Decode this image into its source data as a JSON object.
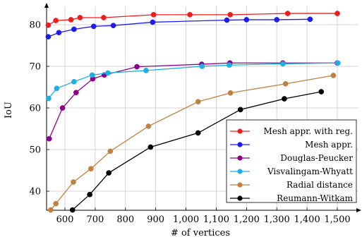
{
  "chart_data": {
    "type": "line",
    "title": "",
    "xlabel": "# of vertices",
    "ylabel": "IoU",
    "xlim": [
      540,
      1520
    ],
    "ylim": [
      35,
      85
    ],
    "x_ticks": [
      600,
      700,
      800,
      900,
      1000,
      1100,
      1200,
      1300,
      1400,
      1500
    ],
    "x_tick_labels": [
      "600",
      "700",
      "800",
      "900",
      "1,000",
      "1,100",
      "1,200",
      "1,300",
      "1,400",
      "1,500"
    ],
    "y_ticks": [
      40,
      50,
      60,
      70,
      80
    ],
    "y_tick_labels": [
      "40",
      "50",
      "60",
      "70",
      "80"
    ],
    "grid": true,
    "legend_position": "bottom-right",
    "series": [
      {
        "name": "Mesh appr. with reg.",
        "color": "#ee1c1c",
        "x": [
          545,
          570,
          620,
          650,
          728,
          893,
          1013,
          1146,
          1336,
          1500
        ],
        "y": [
          79.9,
          81.0,
          81.2,
          81.7,
          81.7,
          82.4,
          82.4,
          82.4,
          82.7,
          82.7
        ]
      },
      {
        "name": "Mesh appr.",
        "color": "#1c1cee",
        "x": [
          545,
          580,
          630,
          695,
          760,
          890,
          1135,
          1200,
          1300,
          1410
        ],
        "y": [
          77.1,
          78.1,
          78.9,
          79.6,
          79.8,
          80.6,
          81.1,
          81.2,
          81.2,
          81.3
        ]
      },
      {
        "name": "Douglas-Peucker",
        "color": "#8b008b",
        "x": [
          548,
          592,
          637,
          692,
          730,
          838,
          1052,
          1145,
          1320,
          1500
        ],
        "y": [
          52.6,
          60.0,
          63.7,
          67.0,
          67.9,
          69.9,
          70.5,
          70.8,
          70.8,
          70.8
        ]
      },
      {
        "name": "Visvalingam-Whyatt",
        "color": "#1ab0e6",
        "x": [
          546,
          573,
          630,
          690,
          742,
          868,
          1053,
          1143,
          1320,
          1502
        ],
        "y": [
          62.3,
          64.7,
          66.3,
          67.9,
          68.4,
          69.0,
          70.0,
          70.3,
          70.6,
          70.8
        ]
      },
      {
        "name": "Radial distance",
        "color": "#c08040",
        "x": [
          553,
          570,
          628,
          686,
          750,
          876,
          1040,
          1147,
          1329,
          1487
        ],
        "y": [
          35.5,
          37.0,
          42.2,
          45.4,
          49.6,
          55.6,
          61.5,
          63.6,
          65.8,
          67.8
        ]
      },
      {
        "name": "Reumann-Witkam",
        "color": "#000000",
        "x": [
          625,
          682,
          745,
          883,
          1040,
          1180,
          1325,
          1447
        ],
        "y": [
          35.5,
          39.2,
          44.4,
          50.6,
          54.0,
          59.6,
          62.2,
          63.9
        ]
      }
    ]
  }
}
